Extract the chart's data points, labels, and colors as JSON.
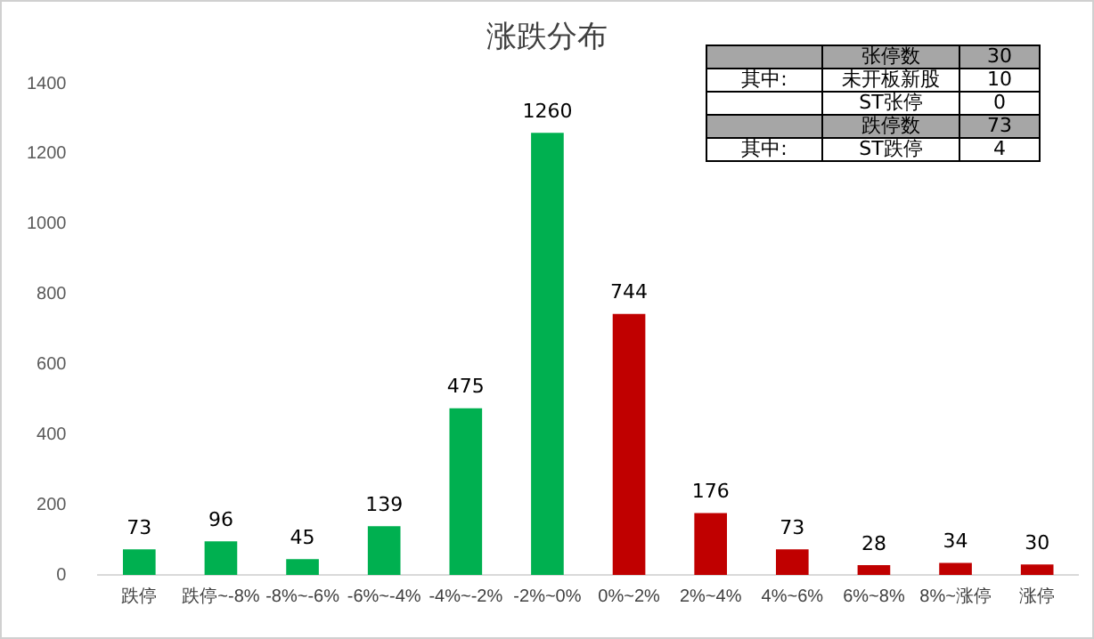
{
  "chart_data": {
    "type": "bar",
    "title": "涨跌分布",
    "categories": [
      "跌停",
      "跌停~-8%",
      "-8%~-6%",
      "-6%~-4%",
      "-4%~-2%",
      "-2%~0%",
      "0%~2%",
      "2%~4%",
      "4%~6%",
      "6%~8%",
      "8%~涨停",
      "涨停"
    ],
    "values": [
      73,
      96,
      45,
      139,
      475,
      1260,
      744,
      176,
      73,
      28,
      34,
      30
    ],
    "colors": [
      "#00b050",
      "#00b050",
      "#00b050",
      "#00b050",
      "#00b050",
      "#00b050",
      "#c00000",
      "#c00000",
      "#c00000",
      "#c00000",
      "#c00000",
      "#c00000"
    ],
    "ylim": [
      0,
      1400
    ],
    "yticks": [
      0,
      200,
      400,
      600,
      800,
      1000,
      1200,
      1400
    ],
    "grid": false,
    "legend": false,
    "data_labels": true,
    "annotations": [
      "张停数",
      "30",
      "其中:",
      "未开板新股",
      "10",
      "ST张停",
      "0",
      "跌停数",
      "73",
      "其中:",
      "ST跌停",
      "4"
    ]
  }
}
